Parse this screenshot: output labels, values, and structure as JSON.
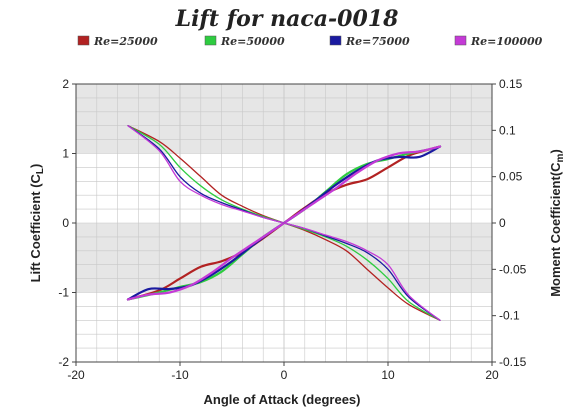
{
  "chart_data": {
    "type": "line",
    "title": "Lift for naca-0018",
    "xlabel": "Angle of Attack (degrees)",
    "ylabel_left_main": "Lift Coefficient (C",
    "ylabel_left_sub": "L",
    "ylabel_right_main": "Moment Coefficient(C",
    "ylabel_right_sub": "m",
    "xlim": [
      -20,
      20
    ],
    "ylim_left": [
      -2,
      2
    ],
    "ylim_right": [
      -0.15,
      0.15
    ],
    "x_ticks": [
      "-20",
      "-10",
      "0",
      "10",
      "20"
    ],
    "y_left_ticks": [
      "-2",
      "-1",
      "0",
      "1",
      "2"
    ],
    "y_right_ticks": [
      "-0.15",
      "-0.1",
      "-0.05",
      "0",
      "0.05",
      "0.1",
      "0.15"
    ],
    "grid": true,
    "legend_position": "top",
    "series": [
      {
        "name": "Re=25000",
        "color": "#b22222",
        "axis": "left",
        "x": [
          -15,
          -12,
          -10,
          -8,
          -6,
          -4,
          -2,
          0,
          2,
          4,
          6,
          8,
          10,
          12,
          14,
          15
        ],
        "y": [
          -1.1,
          -0.97,
          -0.8,
          -0.63,
          -0.55,
          -0.42,
          -0.22,
          0.0,
          0.22,
          0.42,
          0.55,
          0.63,
          0.8,
          0.97,
          1.06,
          1.1
        ]
      },
      {
        "name": "Re=50000",
        "color": "#2ecc40",
        "axis": "left",
        "x": [
          -15,
          -12,
          -10,
          -8,
          -6,
          -4,
          -2,
          0,
          2,
          4,
          6,
          8,
          10,
          12,
          14,
          15
        ],
        "y": [
          -1.1,
          -1.0,
          -0.92,
          -0.85,
          -0.7,
          -0.45,
          -0.2,
          0.0,
          0.2,
          0.45,
          0.7,
          0.85,
          0.92,
          1.0,
          1.06,
          1.1
        ]
      },
      {
        "name": "Re=75000",
        "color": "#1a1aa0",
        "axis": "left",
        "x": [
          -15,
          -13,
          -11,
          -9,
          -7,
          -5,
          -3,
          -1,
          0,
          1,
          3,
          5,
          7,
          9,
          11,
          13,
          15
        ],
        "y": [
          -1.1,
          -0.95,
          -0.95,
          -0.9,
          -0.75,
          -0.55,
          -0.32,
          -0.1,
          0.0,
          0.1,
          0.32,
          0.55,
          0.75,
          0.9,
          0.95,
          0.95,
          1.1
        ]
      },
      {
        "name": "Re=100000",
        "color": "#c43ad6",
        "axis": "left",
        "x": [
          -15,
          -13,
          -11,
          -9,
          -7,
          -5,
          -3,
          -1,
          0,
          1,
          3,
          5,
          7,
          9,
          11,
          13,
          15
        ],
        "y": [
          -1.1,
          -1.03,
          -1.0,
          -0.9,
          -0.72,
          -0.5,
          -0.3,
          -0.1,
          0.0,
          0.1,
          0.3,
          0.5,
          0.72,
          0.9,
          1.0,
          1.03,
          1.1
        ]
      },
      {
        "name": "Re=25000",
        "color": "#b22222",
        "axis": "right",
        "x": [
          -15,
          -12,
          -10,
          -8,
          -6,
          -4,
          -2,
          0,
          2,
          4,
          6,
          8,
          10,
          12,
          15
        ],
        "y": [
          0.105,
          0.088,
          0.07,
          0.05,
          0.03,
          0.018,
          0.008,
          0.0,
          -0.008,
          -0.018,
          -0.03,
          -0.05,
          -0.07,
          -0.088,
          -0.105
        ]
      },
      {
        "name": "Re=50000",
        "color": "#2ecc40",
        "axis": "right",
        "x": [
          -15,
          -12,
          -10,
          -8,
          -6,
          -4,
          -2,
          0,
          2,
          4,
          6,
          8,
          10,
          12,
          15
        ],
        "y": [
          0.105,
          0.085,
          0.06,
          0.04,
          0.025,
          0.015,
          0.007,
          0.0,
          -0.007,
          -0.015,
          -0.025,
          -0.04,
          -0.06,
          -0.085,
          -0.105
        ]
      },
      {
        "name": "Re=75000",
        "color": "#1a1aa0",
        "axis": "right",
        "x": [
          -15,
          -12,
          -10,
          -8,
          -6,
          -4,
          -2,
          0,
          2,
          4,
          6,
          8,
          10,
          12,
          15
        ],
        "y": [
          0.105,
          0.08,
          0.05,
          0.032,
          0.022,
          0.014,
          0.006,
          0.0,
          -0.006,
          -0.014,
          -0.022,
          -0.032,
          -0.05,
          -0.08,
          -0.105
        ]
      },
      {
        "name": "Re=100000",
        "color": "#c43ad6",
        "axis": "right",
        "x": [
          -15,
          -12,
          -10,
          -8,
          -6,
          -4,
          -2,
          0,
          2,
          4,
          6,
          8,
          10,
          12,
          15
        ],
        "y": [
          0.105,
          0.078,
          0.045,
          0.03,
          0.02,
          0.013,
          0.006,
          0.0,
          -0.006,
          -0.013,
          -0.02,
          -0.03,
          -0.045,
          -0.078,
          -0.105
        ]
      }
    ]
  }
}
